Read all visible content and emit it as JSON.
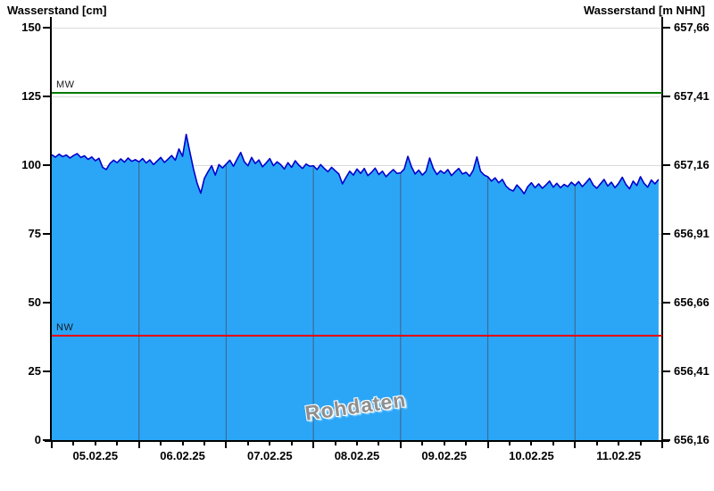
{
  "chart": {
    "title_left": "Wasserstand [cm]",
    "title_right": "Wasserstand [m NHN]",
    "watermark": "Rohdaten",
    "mw_label": "MW",
    "nw_label": "NW"
  },
  "chart_data": {
    "type": "area",
    "title": "",
    "xlabel": "",
    "ylabel_left": "Wasserstand [cm]",
    "ylabel_right": "Wasserstand [m NHN]",
    "x_tick_labels": [
      "05.02.25",
      "06.02.25",
      "07.02.25",
      "08.02.25",
      "09.02.25",
      "10.02.25",
      "11.02.25"
    ],
    "x_range_days": 7,
    "x_minor_tick_hours": 6,
    "y_left": {
      "min": 0,
      "max": 150,
      "ticks": [
        150,
        125,
        100,
        75,
        50,
        25,
        0
      ]
    },
    "y_right": {
      "min": 656.16,
      "max": 657.66,
      "tick_labels": [
        "657,66",
        "657,41",
        "657,16",
        "656,91",
        "656,66",
        "656,41",
        "656,16"
      ]
    },
    "grid": {
      "horizontal": true,
      "vertical_inside_area_only": true
    },
    "reference_lines": [
      {
        "name": "MW",
        "value_cm": 126.3,
        "color": "#007a00"
      },
      {
        "name": "NW",
        "value_cm": 37.9,
        "color": "#e60000"
      }
    ],
    "series": [
      {
        "name": "Wasserstand Rohdaten",
        "unit": "cm",
        "start": "05.02.25 00:00",
        "step_hours": 1,
        "values": [
          103.8,
          102.9,
          104.0,
          103.1,
          103.7,
          102.6,
          103.5,
          104.2,
          102.8,
          103.4,
          102.1,
          103.0,
          101.6,
          102.5,
          99.2,
          98.4,
          100.6,
          101.8,
          100.9,
          102.3,
          101.1,
          102.6,
          101.4,
          102.0,
          101.2,
          102.4,
          100.8,
          101.9,
          100.2,
          101.5,
          102.8,
          101.0,
          102.2,
          103.5,
          101.8,
          105.9,
          103.2,
          111.2,
          104.8,
          98.6,
          93.4,
          89.8,
          95.2,
          97.6,
          99.8,
          96.4,
          100.2,
          99.0,
          100.4,
          101.8,
          99.6,
          102.2,
          104.6,
          101.2,
          99.8,
          102.8,
          100.6,
          101.9,
          99.4,
          100.8,
          102.4,
          99.8,
          101.2,
          100.2,
          98.6,
          100.9,
          99.2,
          101.6,
          100.0,
          98.8,
          100.4,
          99.6,
          99.8,
          98.4,
          100.2,
          98.8,
          97.6,
          99.2,
          98.0,
          96.8,
          93.2,
          95.6,
          97.8,
          96.4,
          98.6,
          97.0,
          98.8,
          96.2,
          97.4,
          98.9,
          96.6,
          97.8,
          95.8,
          97.2,
          98.4,
          97.0,
          97.2,
          98.6,
          103.2,
          99.4,
          96.8,
          98.2,
          96.4,
          97.8,
          102.6,
          98.8,
          96.6,
          98.0,
          97.0,
          98.4,
          96.2,
          97.6,
          98.8,
          96.8,
          97.4,
          96.0,
          98.2,
          103.0,
          97.8,
          96.4,
          95.8,
          94.2,
          95.4,
          93.6,
          94.8,
          92.4,
          91.2,
          90.6,
          92.8,
          91.4,
          89.6,
          92.2,
          93.6,
          91.8,
          93.2,
          91.6,
          92.8,
          94.2,
          92.0,
          93.4,
          91.8,
          93.0,
          92.2,
          93.8,
          92.6,
          94.0,
          92.2,
          93.6,
          95.2,
          92.8,
          91.6,
          93.2,
          94.8,
          92.4,
          93.8,
          91.8,
          93.4,
          95.6,
          93.0,
          91.4,
          94.2,
          92.6,
          95.8,
          93.4,
          92.0,
          94.6,
          93.2,
          94.8
        ]
      }
    ],
    "colors": {
      "area_fill": "#2ba6f7",
      "data_line": "#0000cc",
      "mw_line": "#007a00",
      "nw_line": "#e60000",
      "grid": "#dbdbdb",
      "vgrid_on_area": "#3d6b94",
      "axis": "#000000"
    }
  },
  "layout_note": "Raw water level data area chart with MW/NW reference lines"
}
